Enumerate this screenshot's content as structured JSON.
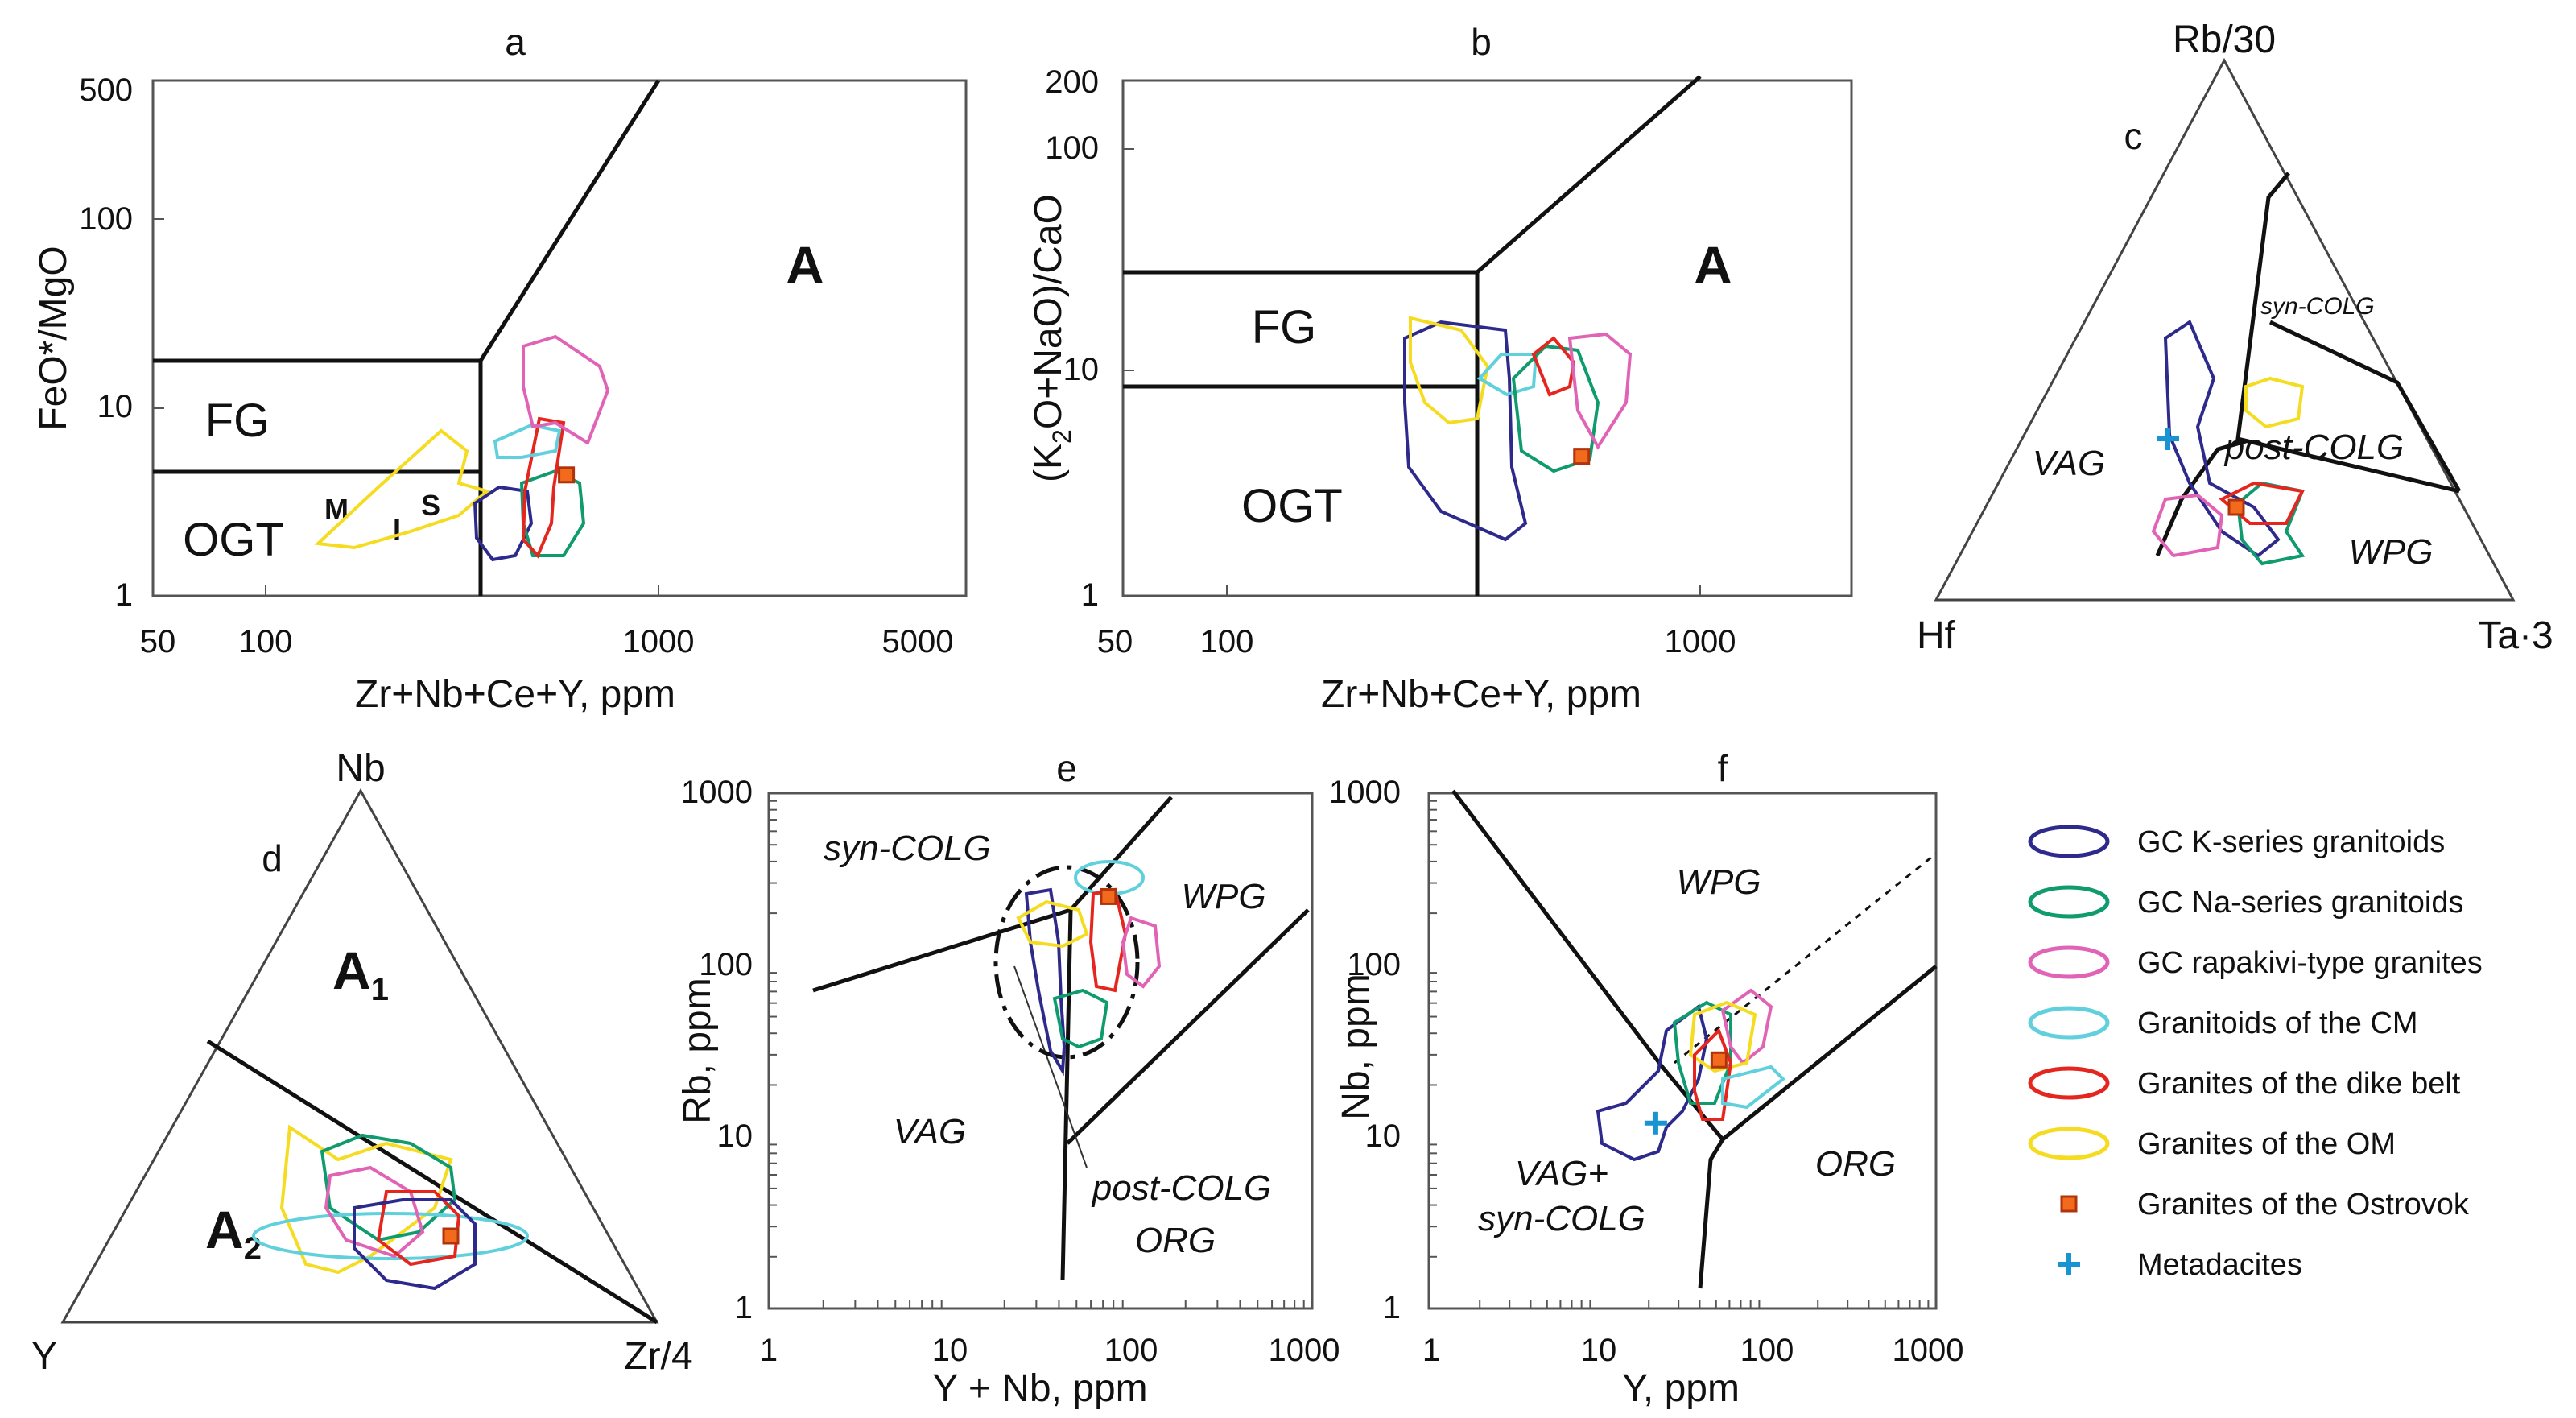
{
  "colors": {
    "k_series": "#2e2a8c",
    "na_series": "#0f9b6e",
    "rapakivi": "#e063b6",
    "cm": "#5fd0dc",
    "dike": "#e5261f",
    "om": "#f5dc20",
    "ostrovok_fill": "#f26a1b",
    "ostrovok_edge": "#b1330c",
    "metadacites": "#1994d2"
  },
  "legend": {
    "items": [
      {
        "key": "k_series",
        "label": "GC K-series granitoids",
        "symbol": "ellipse"
      },
      {
        "key": "na_series",
        "label": "GC Na-series granitoids",
        "symbol": "ellipse"
      },
      {
        "key": "rapakivi",
        "label": "GC rapakivi-type granites",
        "symbol": "ellipse"
      },
      {
        "key": "cm",
        "label": "Granitoids of the CM",
        "symbol": "ellipse"
      },
      {
        "key": "dike",
        "label": "Granites of the dike belt",
        "symbol": "ellipse"
      },
      {
        "key": "om",
        "label": "Granites of the OM",
        "symbol": "ellipse"
      },
      {
        "key": "ostrovok",
        "label": "Granites of the Ostrovok",
        "symbol": "square"
      },
      {
        "key": "metadacites",
        "label": "Metadacites",
        "symbol": "cross"
      }
    ]
  },
  "panels": {
    "a": {
      "title": "a",
      "xlabel": "Zr+Nb+Ce+Y, ppm",
      "ylabel": "FeO*/MgO",
      "xticks": [
        "50",
        "100",
        "1000",
        "5000"
      ],
      "yticks": [
        "1",
        "10",
        "100",
        "500"
      ],
      "fields": {
        "A": "A",
        "FG": "FG",
        "OGT": "OGT",
        "M": "M",
        "I": "I",
        "S": "S"
      }
    },
    "b": {
      "title": "b",
      "xlabel": "Zr+Nb+Ce+Y, ppm",
      "ylabel_main": "(K",
      "ylabel_sub1": "2",
      "ylabel_mid": "O+NaO)/CaO",
      "xticks": [
        "50",
        "100",
        "1000"
      ],
      "yticks": [
        "1",
        "10",
        "100",
        "200"
      ],
      "fields": {
        "A": "A",
        "FG": "FG",
        "OGT": "OGT"
      }
    },
    "c": {
      "title": "c",
      "apex_top": "Rb/30",
      "apex_left": "Hf",
      "apex_right": "Ta·3",
      "fields": {
        "syn": "syn-COLG",
        "post": "post-COLG",
        "vag": "VAG",
        "wpg": "WPG"
      }
    },
    "d": {
      "title": "d",
      "apex_top": "Nb",
      "apex_left": "Y",
      "apex_right": "Zr/4",
      "fields": {
        "A1": "A",
        "A1_sub": "1",
        "A2": "A",
        "A2_sub": "2"
      }
    },
    "e": {
      "title": "e",
      "xlabel": "Y + Nb, ppm",
      "ylabel": "Rb, ppm",
      "xticks": [
        "1",
        "10",
        "100",
        "1000"
      ],
      "yticks": [
        "1",
        "10",
        "100",
        "1000"
      ],
      "fields": {
        "syn": "syn-COLG",
        "wpg": "WPG",
        "vag": "VAG",
        "post": "post-COLG",
        "org": "ORG"
      }
    },
    "f": {
      "title": "f",
      "xlabel": "Y, ppm",
      "ylabel": "Nb, ppm",
      "xticks": [
        "1",
        "10",
        "100",
        "1000"
      ],
      "yticks": [
        "1",
        "10",
        "100",
        "1000"
      ],
      "fields": {
        "wpg": "WPG",
        "org": "ORG",
        "vag1": "VAG+",
        "vag2": "syn-COLG"
      }
    }
  },
  "chart_data": [
    {
      "type": "scatter",
      "panel": "a",
      "title": "a",
      "xlabel": "Zr+Nb+Ce+Y, ppm",
      "ylabel": "FeO*/MgO",
      "xscale": "log",
      "yscale": "log",
      "xlim": [
        50,
        5000
      ],
      "ylim": [
        1,
        500
      ],
      "series": [
        {
          "name": "Granites of the Ostrovok",
          "values": [
            {
              "x": 520,
              "y": 4.3
            }
          ]
        }
      ]
    },
    {
      "type": "scatter",
      "panel": "b",
      "title": "b",
      "xlabel": "Zr+Nb+Ce+Y, ppm",
      "ylabel": "(K2O+NaO)/CaO",
      "xscale": "log",
      "yscale": "log",
      "xlim": [
        50,
        2000
      ],
      "ylim": [
        1,
        200
      ],
      "series": [
        {
          "name": "Granites of the Ostrovok",
          "values": [
            {
              "x": 510,
              "y": 4.2
            }
          ]
        }
      ]
    },
    {
      "type": "scatter",
      "panel": "e",
      "title": "e",
      "xlabel": "Y + Nb, ppm",
      "ylabel": "Rb, ppm",
      "xscale": "log",
      "yscale": "log",
      "xlim": [
        1,
        1000
      ],
      "ylim": [
        1,
        1000
      ],
      "series": [
        {
          "name": "Granites of the Ostrovok",
          "values": [
            {
              "x": 75,
              "y": 250
            }
          ]
        }
      ]
    },
    {
      "type": "scatter",
      "panel": "f",
      "title": "f",
      "xlabel": "Y, ppm",
      "ylabel": "Nb, ppm",
      "xscale": "log",
      "yscale": "log",
      "xlim": [
        1,
        1000
      ],
      "ylim": [
        1,
        1000
      ],
      "series": [
        {
          "name": "Granites of the Ostrovok",
          "values": [
            {
              "x": 52,
              "y": 28
            }
          ]
        },
        {
          "name": "Metadacites",
          "values": [
            {
              "x": 22,
              "y": 12
            }
          ]
        }
      ]
    }
  ]
}
